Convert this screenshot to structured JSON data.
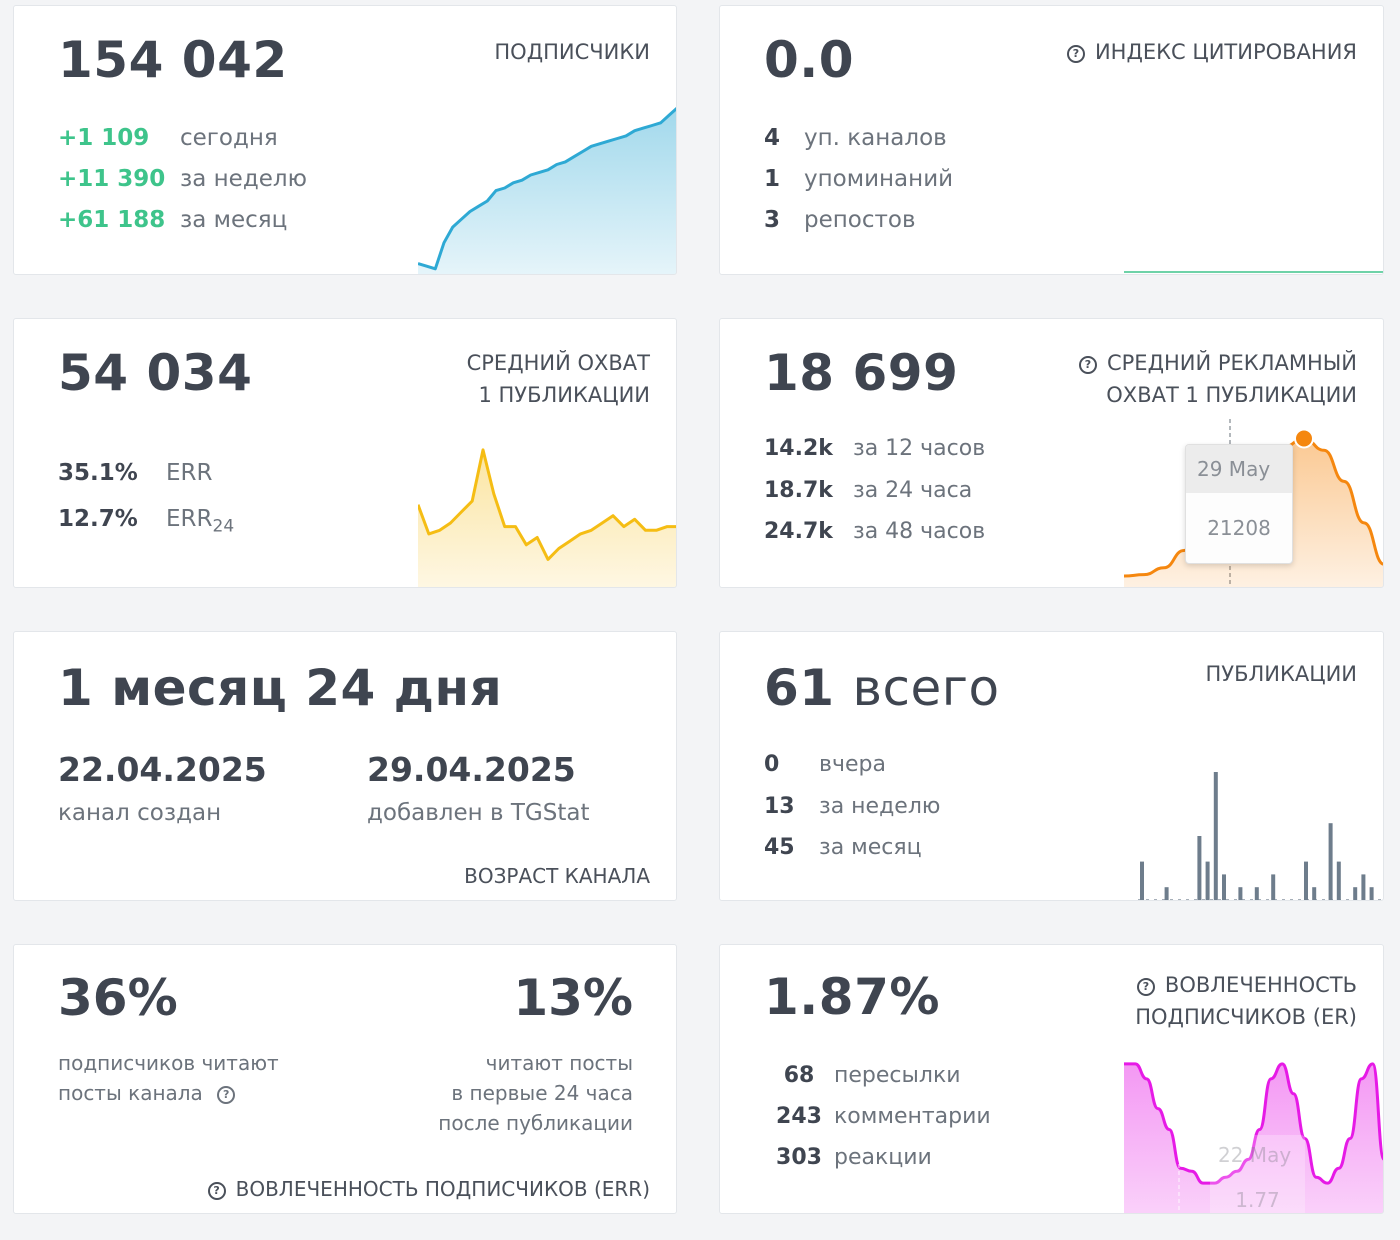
{
  "subscribers": {
    "value": "154 042",
    "title": "ПОДПИСЧИКИ",
    "rows": [
      {
        "value": "+1 109",
        "label": "сегодня"
      },
      {
        "value": "+11 390",
        "label": "за неделю"
      },
      {
        "value": "+61 188",
        "label": "за месяц"
      }
    ],
    "color": "#2ea9d4"
  },
  "citation": {
    "value": "0.0",
    "title": "ИНДЕКС ЦИТИРОВАНИЯ",
    "rows": [
      {
        "value": "4",
        "label": "уп. каналов"
      },
      {
        "value": "1",
        "label": "упоминаний"
      },
      {
        "value": "3",
        "label": "репостов"
      }
    ],
    "color": "#3ec48b"
  },
  "reach": {
    "value": "54 034",
    "title_line1": "СРЕДНИЙ ОХВАТ",
    "title_line2": "1 ПУБЛИКАЦИИ",
    "rows": [
      {
        "value": "35.1%",
        "label": "ERR",
        "sub": ""
      },
      {
        "value": "12.7%",
        "label": "ERR",
        "sub": "24"
      }
    ],
    "color": "#f5bd14"
  },
  "ad_reach": {
    "value": "18 699",
    "title_line1": "СРЕДНИЙ РЕКЛАМНЫЙ",
    "title_line2": "ОХВАТ 1 ПУБЛИКАЦИИ",
    "rows": [
      {
        "value": "14.2k",
        "label": "за 12 часов"
      },
      {
        "value": "18.7k",
        "label": "за 24 часа"
      },
      {
        "value": "24.7k",
        "label": "за 48 часов"
      }
    ],
    "tooltip": {
      "date": "29 May",
      "value": "21208"
    },
    "color": "#f5870f"
  },
  "age": {
    "value": "1 месяц 24 дня",
    "created_date": "22.04.2025",
    "created_label": "канал создан",
    "added_date": "29.04.2025",
    "added_label": "добавлен в TGStat",
    "title": "ВОЗРАСТ КАНАЛА"
  },
  "posts": {
    "value_num": "61",
    "value_word": "всего",
    "title": "ПУБЛИКАЦИИ",
    "rows": [
      {
        "value": "0",
        "label": "вчера"
      },
      {
        "value": "13",
        "label": "за неделю"
      },
      {
        "value": "45",
        "label": "за месяц"
      }
    ],
    "color": "#6e7d8c"
  },
  "err": {
    "left_value": "36%",
    "left_line1": "подписчиков читают",
    "left_line2": "посты канала",
    "right_value": "13%",
    "right_line1": "читают посты",
    "right_line2": "в первые 24 часа",
    "right_line3": "после публикации",
    "title": "ВОВЛЕЧЕННОСТЬ ПОДПИСЧИКОВ (ERR)"
  },
  "er": {
    "value": "1.87%",
    "title_line1": "ВОВЛЕЧЕННОСТЬ",
    "title_line2": "ПОДПИСЧИКОВ (ER)",
    "rows": [
      {
        "value": "68",
        "label": "пересылки"
      },
      {
        "value": "243",
        "label": "комментарии"
      },
      {
        "value": "303",
        "label": "реакции"
      }
    ],
    "tooltip": {
      "date": "22 May",
      "value": "1.77"
    },
    "color": "#e61ae6"
  },
  "chart_data": [
    {
      "type": "area",
      "series": [
        {
          "values": [
            82,
            81.5,
            81,
            86,
            89,
            90.5,
            92,
            93,
            94,
            96,
            96.5,
            97.5,
            98,
            99,
            99.5,
            100,
            101,
            101.5,
            102.5,
            103.5,
            104.5,
            105,
            105.5,
            106,
            106.5,
            107.5,
            108,
            108.5,
            109,
            110.5,
            112
          ]
        }
      ]
    },
    {
      "type": "line",
      "series": [
        {
          "values": [
            0,
            0,
            0,
            0,
            0,
            0,
            0,
            0,
            0,
            0
          ]
        }
      ]
    },
    {
      "type": "area",
      "series": [
        {
          "values": [
            52,
            44,
            45,
            47,
            50,
            53,
            67,
            55,
            46,
            46,
            41,
            43,
            37,
            40,
            42,
            44,
            45,
            47,
            49,
            46,
            48,
            45,
            45,
            46,
            46
          ]
        }
      ]
    },
    {
      "type": "area",
      "series": [
        {
          "values": [
            1300,
            1500,
            2500,
            5000,
            8500,
            12000,
            15500,
            18000,
            20000,
            21208,
            19500,
            15000,
            9000,
            3000
          ]
        }
      ],
      "tooltip": {
        "x": "29 May",
        "y": 21208
      }
    },
    {
      "type": "bar",
      "series": [
        {
          "values": [
            3,
            0,
            0,
            1,
            0,
            0,
            0,
            5,
            3,
            10,
            2,
            0,
            1,
            0,
            1,
            0,
            2,
            0,
            0,
            0,
            3,
            1,
            0,
            6,
            3,
            0,
            1,
            2,
            1,
            0
          ]
        }
      ]
    },
    {
      "type": "area",
      "series": [
        {
          "values": [
            2.1,
            2.1,
            2.05,
            1.95,
            1.88,
            1.75,
            1.74,
            1.7,
            1.7,
            1.72,
            1.74,
            1.78,
            1.88,
            2.05,
            2.1,
            2.0,
            1.85,
            1.72,
            1.7,
            1.75,
            1.85,
            2.05,
            2.1,
            1.78
          ]
        }
      ],
      "tooltip": {
        "x": "22 May",
        "y": 1.77
      }
    }
  ]
}
